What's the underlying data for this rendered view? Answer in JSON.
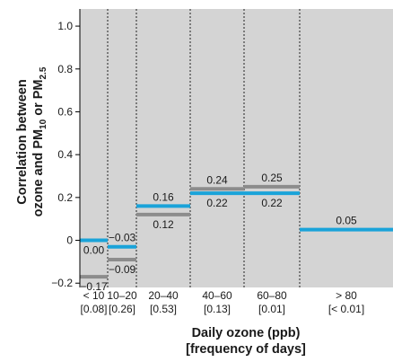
{
  "chart_data": {
    "type": "step",
    "xlabel_lines": [
      "Daily ozone (ppb)",
      "[frequency of days]"
    ],
    "ylabel": {
      "line1": "Correlation between",
      "line2_prefix": "ozone and PM",
      "line2_sub1": "10",
      "line2_mid": " or PM",
      "line2_sub2": "2.5"
    },
    "ylim": [
      -0.22,
      1.08
    ],
    "yticks": [
      {
        "value": 1.0,
        "label": "1.0"
      },
      {
        "value": 0.8,
        "label": "0.8"
      },
      {
        "value": 0.6,
        "label": "0.6"
      },
      {
        "value": 0.4,
        "label": "0.4"
      },
      {
        "value": 0.2,
        "label": "0.2"
      },
      {
        "value": 0.0,
        "label": "0"
      },
      {
        "value": -0.2,
        "label": "−0.2"
      }
    ],
    "categories": [
      {
        "range": "< 10",
        "frequency": "[0.08]"
      },
      {
        "range": "10–20",
        "frequency": "[0.26]"
      },
      {
        "range": "20–40",
        "frequency": "[0.53]"
      },
      {
        "range": "40–60",
        "frequency": "[0.13]"
      },
      {
        "range": "60–80",
        "frequency": "[0.01]"
      },
      {
        "range": "> 80",
        "frequency": "[< 0.01]"
      }
    ],
    "series": [
      {
        "color": "#1aa3d9",
        "values": [
          0.0,
          -0.03,
          0.16,
          0.22,
          0.22,
          0.05
        ],
        "labels": [
          "0.00",
          "−0.03",
          "0.16",
          "0.22",
          "0.22",
          "0.05"
        ],
        "label_side": [
          "below",
          "above",
          "above",
          "below",
          "below",
          "above"
        ]
      },
      {
        "color": "#8c8c8c",
        "values": [
          -0.17,
          -0.09,
          0.12,
          0.24,
          0.25,
          null
        ],
        "labels": [
          "−0.17",
          "−0.09",
          "0.12",
          "0.24",
          "0.25",
          null
        ],
        "label_side": [
          "below",
          "below",
          "below",
          "above",
          "above",
          null
        ]
      }
    ],
    "colors": {
      "plot_background": "#d4d4d4",
      "divider": "#222222",
      "axis": "#000000"
    }
  }
}
